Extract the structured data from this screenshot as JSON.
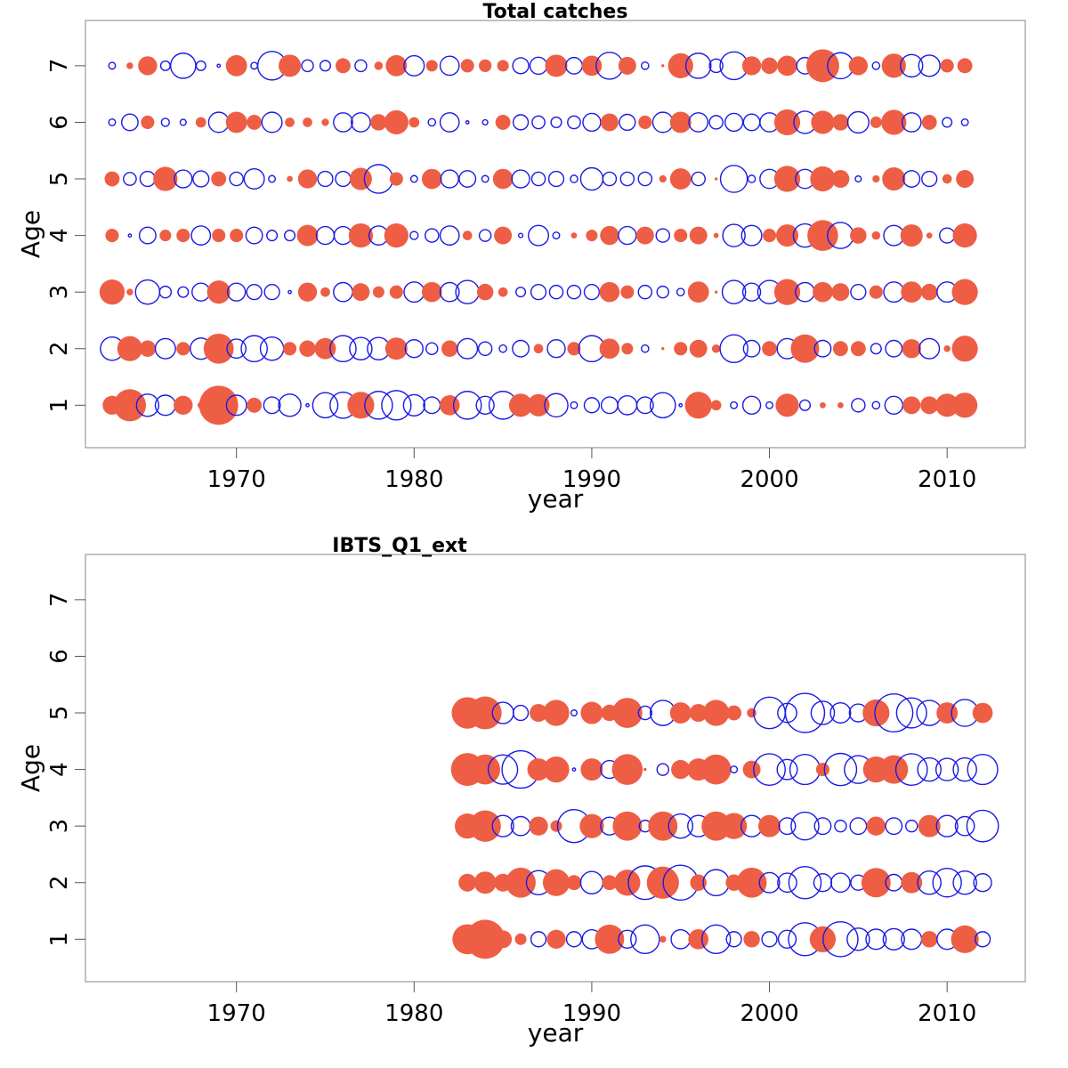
{
  "colors": {
    "positive": "#ee5e44",
    "negative": "#1a1ae6",
    "frame": "#9a9a9a"
  },
  "chart_data": [
    {
      "type": "scatter",
      "subtype": "bubble",
      "title": "Total catches",
      "xlabel": "year",
      "ylabel": "Age",
      "xlim": [
        1961.5,
        2014.4
      ],
      "ylim": [
        0.25,
        7.8
      ],
      "xticks": [
        1970,
        1980,
        1990,
        2000,
        2010
      ],
      "yticks": [
        1,
        2,
        3,
        4,
        5,
        6,
        7
      ],
      "encoding": "bubble area ∝ |residual|; positive = filled red, negative = open blue",
      "years": [
        1963,
        1964,
        1965,
        1966,
        1967,
        1968,
        1969,
        1970,
        1971,
        1972,
        1973,
        1974,
        1975,
        1976,
        1977,
        1978,
        1979,
        1980,
        1981,
        1982,
        1983,
        1984,
        1985,
        1986,
        1987,
        1988,
        1989,
        1990,
        1991,
        1992,
        1993,
        1994,
        1995,
        1996,
        1997,
        1998,
        1999,
        2000,
        2001,
        2002,
        2003,
        2004,
        2005,
        2006,
        2007,
        2008,
        2009,
        2010,
        2011
      ],
      "series": [
        {
          "age": 7,
          "values": [
            -0.05,
            0.05,
            0.4,
            -0.1,
            -0.7,
            -0.1,
            -0.01,
            0.5,
            -0.05,
            -0.9,
            0.55,
            -0.15,
            -0.12,
            0.25,
            -0.15,
            0.08,
            0.5,
            -0.45,
            0.15,
            -0.4,
            0.2,
            0.18,
            0.15,
            -0.28,
            -0.32,
            0.55,
            -0.3,
            0.45,
            -0.8,
            0.35,
            -0.06,
            0.01,
            0.7,
            -0.7,
            -0.2,
            -0.85,
            0.4,
            0.3,
            0.45,
            -0.3,
            1.2,
            -0.75,
            0.4,
            -0.06,
            0.65,
            -0.55,
            -0.5,
            0.2,
            0.25
          ]
        },
        {
          "age": 6,
          "values": [
            -0.05,
            -0.3,
            0.2,
            -0.07,
            -0.04,
            0.12,
            -0.45,
            0.5,
            0.25,
            -0.45,
            0.1,
            0.1,
            0.06,
            -0.4,
            -0.4,
            0.3,
            0.65,
            0.12,
            -0.06,
            -0.4,
            -0.01,
            -0.03,
            0.25,
            -0.25,
            -0.18,
            -0.12,
            -0.18,
            -0.35,
            0.35,
            -0.28,
            0.2,
            -0.45,
            0.5,
            -0.4,
            -0.2,
            -0.35,
            -0.3,
            -0.4,
            0.75,
            -0.55,
            0.6,
            0.3,
            -0.5,
            0.15,
            0.7,
            -0.4,
            0.25,
            -0.1,
            -0.05
          ]
        },
        {
          "age": 5,
          "values": [
            0.25,
            -0.18,
            -0.25,
            0.65,
            -0.35,
            -0.28,
            0.25,
            -0.2,
            -0.45,
            -0.05,
            0.04,
            0.4,
            -0.25,
            -0.25,
            0.55,
            -0.9,
            0.2,
            -0.05,
            0.45,
            -0.35,
            -0.3,
            -0.05,
            0.45,
            -0.35,
            -0.2,
            -0.25,
            -0.06,
            -0.55,
            -0.2,
            -0.2,
            -0.2,
            0.06,
            0.5,
            -0.2,
            0.01,
            -0.8,
            -0.06,
            -0.4,
            0.75,
            -0.4,
            0.7,
            0.35,
            -0.04,
            0.06,
            0.6,
            -0.3,
            -0.25,
            0.1,
            0.35
          ]
        },
        {
          "age": 4,
          "values": [
            0.2,
            -0.01,
            -0.3,
            0.15,
            0.2,
            -0.4,
            0.2,
            0.2,
            -0.3,
            -0.12,
            -0.12,
            0.5,
            -0.35,
            -0.35,
            0.65,
            -0.4,
            0.65,
            -0.07,
            -0.2,
            -0.4,
            0.1,
            -0.15,
            0.35,
            -0.02,
            -0.45,
            -0.05,
            0.04,
            0.15,
            0.4,
            -0.35,
            0.35,
            -0.2,
            0.2,
            0.35,
            0.03,
            -0.55,
            -0.45,
            0.2,
            0.55,
            -0.6,
            1.05,
            -0.75,
            0.3,
            0.08,
            -0.45,
            0.55,
            0.04,
            -0.25,
            0.65
          ]
        },
        {
          "age": 3,
          "values": [
            0.7,
            0.05,
            -0.65,
            -0.15,
            -0.12,
            -0.35,
            0.6,
            -0.35,
            -0.25,
            -0.25,
            -0.01,
            0.4,
            0.1,
            -0.4,
            0.35,
            0.15,
            0.2,
            -0.45,
            0.45,
            -0.4,
            -0.6,
            0.3,
            0.1,
            -0.1,
            -0.25,
            -0.2,
            -0.2,
            -0.25,
            0.45,
            0.2,
            -0.2,
            -0.15,
            -0.06,
            0.5,
            0.01,
            -0.6,
            -0.35,
            -0.6,
            0.75,
            -0.4,
            0.45,
            0.35,
            -0.25,
            0.2,
            -0.45,
            0.5,
            0.3,
            -0.45,
            0.75
          ]
        },
        {
          "age": 2,
          "values": [
            -0.6,
            0.7,
            0.3,
            -0.45,
            0.2,
            -0.5,
            1.0,
            -0.4,
            -0.75,
            -0.6,
            0.2,
            0.3,
            0.5,
            -0.75,
            -0.55,
            -0.55,
            0.55,
            -0.35,
            -0.15,
            0.3,
            -0.45,
            -0.2,
            -0.06,
            -0.3,
            0.1,
            -0.35,
            0.2,
            -0.75,
            0.45,
            0.15,
            -0.06,
            0.01,
            0.2,
            0.35,
            0.08,
            -0.85,
            -0.3,
            0.25,
            -0.45,
            0.9,
            -0.3,
            0.25,
            0.25,
            -0.12,
            -0.3,
            0.4,
            -0.45,
            0.05,
            0.75
          ]
        },
        {
          "age": 1,
          "values": [
            0.4,
            1.15,
            -0.55,
            -0.45,
            0.4,
            0.05,
            1.7,
            -0.45,
            0.25,
            -0.3,
            -0.55,
            -0.01,
            -0.7,
            -0.75,
            0.8,
            -0.85,
            -0.95,
            -0.5,
            -0.3,
            0.45,
            -0.85,
            -0.35,
            -0.85,
            0.6,
            0.55,
            -0.6,
            -0.05,
            -0.25,
            -0.3,
            -0.4,
            -0.3,
            -0.7,
            -0.01,
            0.8,
            0.12,
            -0.05,
            -0.35,
            -0.05,
            0.6,
            -0.12,
            0.04,
            0.04,
            -0.2,
            -0.06,
            -0.35,
            0.35,
            0.35,
            0.6,
            0.7
          ]
        }
      ]
    },
    {
      "type": "scatter",
      "subtype": "bubble",
      "title": "IBTS_Q1_ext",
      "xlabel": "year",
      "ylabel": "Age",
      "xlim": [
        1961.5,
        2014.4
      ],
      "ylim": [
        0.25,
        7.8
      ],
      "xticks": [
        1970,
        1980,
        1990,
        2000,
        2010
      ],
      "yticks": [
        1,
        2,
        3,
        4,
        5,
        6,
        7
      ],
      "encoding": "bubble area ∝ |residual|; positive = filled red, negative = open blue",
      "years": [
        1983,
        1984,
        1985,
        1986,
        1987,
        1988,
        1989,
        1990,
        1991,
        1992,
        1993,
        1994,
        1995,
        1996,
        1997,
        1998,
        1999,
        2000,
        2001,
        2002,
        2003,
        2004,
        2005,
        2006,
        2007,
        2008,
        2009,
        2010,
        2011,
        2012
      ],
      "series": [
        {
          "age": 7,
          "values": []
        },
        {
          "age": 6,
          "values": []
        },
        {
          "age": 5,
          "values": [
            1.1,
            1.2,
            -0.5,
            -0.25,
            0.35,
            0.75,
            -0.04,
            0.55,
            0.3,
            1.0,
            -0.2,
            -0.7,
            0.5,
            0.35,
            0.75,
            0.25,
            0.1,
            -1.1,
            -0.4,
            -1.7,
            -0.6,
            -0.45,
            -0.35,
            0.8,
            -1.6,
            -1.0,
            -0.7,
            0.5,
            -0.8,
            0.45
          ]
        },
        {
          "age": 4,
          "values": [
            1.2,
            1.0,
            -0.95,
            -1.55,
            0.55,
            0.75,
            -0.01,
            0.55,
            -0.35,
            1.05,
            0.01,
            -0.15,
            0.4,
            0.55,
            1.0,
            -0.05,
            0.35,
            -1.1,
            -0.45,
            -1.0,
            0.2,
            -1.15,
            -0.85,
            0.75,
            0.9,
            -1.1,
            -0.6,
            -0.55,
            -0.6,
            -1.0
          ]
        },
        {
          "age": 3,
          "values": [
            0.7,
            1.1,
            -0.5,
            -0.4,
            0.4,
            0.15,
            -1.2,
            0.65,
            -0.35,
            0.95,
            -0.15,
            0.95,
            -0.65,
            -0.5,
            0.95,
            0.75,
            -0.5,
            0.55,
            -0.3,
            -0.85,
            -0.3,
            -0.15,
            -0.3,
            0.4,
            -0.3,
            -0.15,
            0.55,
            -0.5,
            -0.4,
            -1.1
          ]
        },
        {
          "age": 2,
          "values": [
            0.35,
            0.55,
            0.35,
            1.0,
            -0.65,
            0.8,
            0.25,
            -0.55,
            0.25,
            0.75,
            -1.25,
            1.15,
            -1.35,
            0.3,
            -0.75,
            0.3,
            1.0,
            -0.45,
            -0.4,
            -1.15,
            -0.35,
            -0.4,
            -0.25,
            0.95,
            -0.3,
            0.5,
            -0.6,
            -0.9,
            -0.6,
            -0.35
          ]
        },
        {
          "age": 1,
          "values": [
            1.0,
            1.7,
            0.35,
            0.15,
            -0.25,
            0.4,
            -0.25,
            -0.4,
            0.95,
            -0.35,
            -0.9,
            0.05,
            -0.4,
            0.45,
            -0.9,
            -0.25,
            0.3,
            -0.25,
            -0.35,
            -1.2,
            0.75,
            -1.35,
            -0.55,
            -0.45,
            -0.5,
            -0.45,
            0.3,
            -0.45,
            0.85,
            -0.25
          ]
        }
      ]
    }
  ]
}
